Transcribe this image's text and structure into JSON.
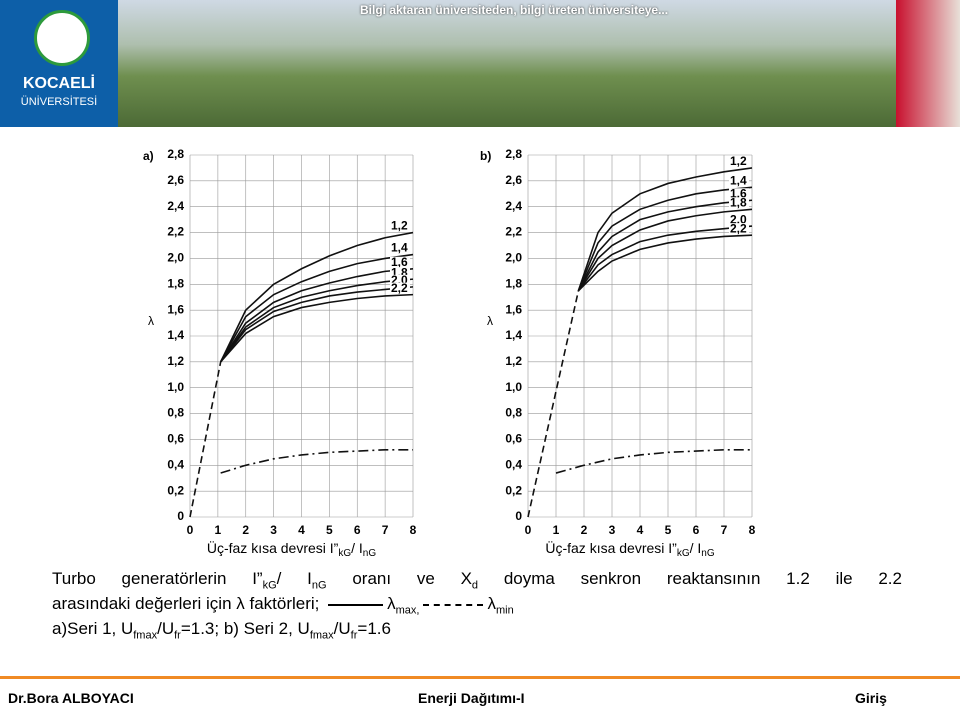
{
  "header": {
    "brand": "KOCAELİ",
    "brand_sub": "ÜNİVERSİTESİ",
    "slogan": "Bilgi aktaran üniversiteden, bilgi üreten üniversiteye..."
  },
  "chart_data": [
    {
      "type": "line",
      "panel": "a)",
      "ylabel": "λ",
      "xlabel": [
        {
          "text": "Üç-faz kısa devresi I”"
        },
        {
          "text": "kG",
          "sub": true
        },
        {
          "text": "/ I"
        },
        {
          "text": "nG",
          "sub": true
        }
      ],
      "xlim": [
        0,
        8
      ],
      "xticks": [
        0,
        1,
        2,
        3,
        4,
        5,
        6,
        7,
        8
      ],
      "ylim": [
        0,
        2.8
      ],
      "yticks": [
        0,
        {
          "value": 0.2,
          "label": "0,2"
        },
        {
          "value": 0.4,
          "label": "0,4"
        },
        {
          "value": 0.6,
          "label": "0,6"
        },
        {
          "value": 0.8,
          "label": "0,8"
        },
        {
          "value": 1.0,
          "label": "1,0"
        },
        {
          "value": 1.2,
          "label": "1,2"
        },
        {
          "value": 1.4,
          "label": "1,4"
        },
        {
          "value": 1.6,
          "label": "1,6"
        },
        {
          "value": 1.8,
          "label": "1,8"
        },
        {
          "value": 2.0,
          "label": "2,0"
        },
        {
          "value": 2.2,
          "label": "2,2"
        },
        {
          "value": 2.4,
          "label": "2,4"
        },
        {
          "value": 2.6,
          "label": "2,6"
        },
        {
          "value": 2.8,
          "label": "2,8"
        }
      ],
      "grid": true,
      "color": "#111",
      "series": [
        {
          "name": "1,2",
          "x": [
            1.1,
            2,
            3,
            4,
            5,
            6,
            7,
            8
          ],
          "values": [
            1.2,
            1.6,
            1.8,
            1.92,
            2.02,
            2.1,
            2.16,
            2.2
          ]
        },
        {
          "name": "1,4",
          "x": [
            1.1,
            2,
            3,
            4,
            5,
            6,
            7,
            8
          ],
          "values": [
            1.2,
            1.55,
            1.72,
            1.82,
            1.9,
            1.96,
            2.0,
            2.03
          ]
        },
        {
          "name": "1,6",
          "x": [
            1.1,
            2,
            3,
            4,
            5,
            6,
            7,
            8
          ],
          "values": [
            1.2,
            1.5,
            1.66,
            1.75,
            1.81,
            1.86,
            1.9,
            1.92
          ]
        },
        {
          "name": "1,8",
          "x": [
            1.1,
            2,
            3,
            4,
            5,
            6,
            7,
            8
          ],
          "values": [
            1.2,
            1.47,
            1.62,
            1.7,
            1.75,
            1.79,
            1.82,
            1.84
          ]
        },
        {
          "name": "2,0",
          "x": [
            1.1,
            2,
            3,
            4,
            5,
            6,
            7,
            8
          ],
          "values": [
            1.2,
            1.45,
            1.59,
            1.66,
            1.71,
            1.74,
            1.76,
            1.78
          ]
        },
        {
          "name": "2,2",
          "x": [
            1.1,
            2,
            3,
            4,
            5,
            6,
            7,
            8
          ],
          "values": [
            1.2,
            1.42,
            1.55,
            1.62,
            1.66,
            1.69,
            1.71,
            1.72
          ]
        },
        {
          "style": "dashed",
          "x": [
            0,
            1.1
          ],
          "values": [
            0,
            1.2
          ]
        },
        {
          "style": "dashdot",
          "x": [
            1.1,
            2,
            3,
            4,
            5,
            6,
            7,
            8
          ],
          "values": [
            0.34,
            0.4,
            0.45,
            0.48,
            0.5,
            0.51,
            0.52,
            0.52
          ]
        }
      ]
    },
    {
      "type": "line",
      "panel": "b)",
      "ylabel": "λ",
      "xlabel": [
        {
          "text": "Üç-faz kısa devresi I”"
        },
        {
          "text": "kG",
          "sub": true
        },
        {
          "text": "/ I"
        },
        {
          "text": "nG",
          "sub": true
        }
      ],
      "xlim": [
        0,
        8
      ],
      "xticks": [
        0,
        1,
        2,
        3,
        4,
        5,
        6,
        7,
        8
      ],
      "ylim": [
        0,
        2.8
      ],
      "yticks": [
        0,
        {
          "value": 0.2,
          "label": "0,2"
        },
        {
          "value": 0.4,
          "label": "0,4"
        },
        {
          "value": 0.6,
          "label": "0,6"
        },
        {
          "value": 0.8,
          "label": "0,8"
        },
        {
          "value": 1.0,
          "label": "1,0"
        },
        {
          "value": 1.2,
          "label": "1,2"
        },
        {
          "value": 1.4,
          "label": "1,4"
        },
        {
          "value": 1.6,
          "label": "1,6"
        },
        {
          "value": 1.8,
          "label": "1,8"
        },
        {
          "value": 2.0,
          "label": "2,0"
        },
        {
          "value": 2.2,
          "label": "2,2"
        },
        {
          "value": 2.4,
          "label": "2,4"
        },
        {
          "value": 2.6,
          "label": "2,6"
        },
        {
          "value": 2.8,
          "label": "2,8"
        }
      ],
      "grid": true,
      "color": "#111",
      "series": [
        {
          "name": "1,2",
          "x": [
            1.8,
            2.5,
            3,
            4,
            5,
            6,
            7,
            8
          ],
          "values": [
            1.75,
            2.2,
            2.35,
            2.5,
            2.58,
            2.63,
            2.67,
            2.7
          ]
        },
        {
          "name": "1,4",
          "x": [
            1.8,
            2.5,
            3,
            4,
            5,
            6,
            7,
            8
          ],
          "values": [
            1.75,
            2.12,
            2.25,
            2.38,
            2.45,
            2.5,
            2.53,
            2.55
          ]
        },
        {
          "name": "1,6",
          "x": [
            1.8,
            2.5,
            3,
            4,
            5,
            6,
            7,
            8
          ],
          "values": [
            1.75,
            2.05,
            2.17,
            2.3,
            2.36,
            2.4,
            2.43,
            2.45
          ]
        },
        {
          "name": "1,8",
          "x": [
            1.8,
            2.5,
            3,
            4,
            5,
            6,
            7,
            8
          ],
          "values": [
            1.75,
            2.0,
            2.1,
            2.22,
            2.29,
            2.33,
            2.36,
            2.38
          ]
        },
        {
          "name": "2,0",
          "x": [
            1.8,
            2.5,
            3,
            4,
            5,
            6,
            7,
            8
          ],
          "values": [
            1.75,
            1.95,
            2.03,
            2.13,
            2.18,
            2.21,
            2.23,
            2.25
          ]
        },
        {
          "name": "2,2",
          "x": [
            1.8,
            2.5,
            3,
            4,
            5,
            6,
            7,
            8
          ],
          "values": [
            1.75,
            1.9,
            1.98,
            2.07,
            2.12,
            2.15,
            2.17,
            2.18
          ]
        },
        {
          "style": "dashed",
          "x": [
            0,
            1.8
          ],
          "values": [
            0,
            1.75
          ]
        },
        {
          "style": "dashdot",
          "x": [
            1,
            2,
            3,
            4,
            5,
            6,
            7,
            8
          ],
          "values": [
            0.34,
            0.4,
            0.45,
            0.48,
            0.5,
            0.51,
            0.52,
            0.52
          ]
        }
      ]
    }
  ],
  "caption": [
    [
      {
        "text": "Turbo generatörlerin I”"
      },
      {
        "text": "kG",
        "sub": true
      },
      {
        "text": "/ I"
      },
      {
        "text": "nG",
        "sub": true
      },
      {
        "text": " oranı ve X"
      },
      {
        "text": "d",
        "sub": true
      },
      {
        "text": " doyma senkron reaktansının 1.2 ile 2.2"
      }
    ],
    [
      {
        "text": "arasındaki değerleri için λ faktörleri; "
      },
      {
        "key": "solid"
      },
      {
        "text": "λ"
      },
      {
        "text": "max,",
        "sub": true
      },
      {
        "key": "dashdot"
      },
      {
        "text": "λ"
      },
      {
        "text": "min",
        "sub": true
      }
    ],
    [
      {
        "text": "a)Seri 1, U"
      },
      {
        "text": "fmax",
        "sub": true
      },
      {
        "text": "/U"
      },
      {
        "text": "fr",
        "sub": true
      },
      {
        "text": "=1.3; b) Seri 2, U"
      },
      {
        "text": "fmax",
        "sub": true
      },
      {
        "text": "/U"
      },
      {
        "text": "fr",
        "sub": true
      },
      {
        "text": "=1.6"
      }
    ]
  ],
  "footer": {
    "left": "Dr.Bora ALBOYACI",
    "center": "Enerji Dağıtımı-I",
    "right": "Giriş"
  }
}
